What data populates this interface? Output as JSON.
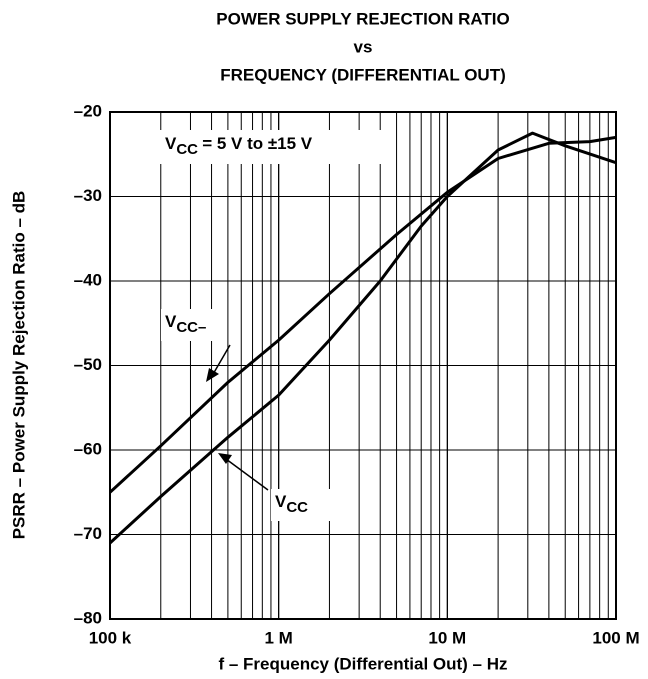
{
  "chart_data": {
    "type": "line",
    "title": [
      "POWER SUPPLY REJECTION RATIO",
      "vs",
      "FREQUENCY (DIFFERENTIAL OUT)"
    ],
    "x_label": "f – Frequency (Differential Out) – Hz",
    "y_label": "PSRR – Power Supply Rejection Ratio – dB",
    "annotation": "VCC = 5 V to ±15 V",
    "x_log": true,
    "grid": true,
    "xlim": [
      100000,
      100000000
    ],
    "xticks": [
      {
        "value": 100000,
        "label": "100 k"
      },
      {
        "value": 1000000,
        "label": "1 M"
      },
      {
        "value": 10000000,
        "label": "10 M"
      },
      {
        "value": 100000000,
        "label": "100 M"
      }
    ],
    "ylim": [
      -80,
      -20
    ],
    "yticks": [
      {
        "value": -20,
        "label": "–20"
      },
      {
        "value": -30,
        "label": "–30"
      },
      {
        "value": -40,
        "label": "–40"
      },
      {
        "value": -50,
        "label": "–50"
      },
      {
        "value": -60,
        "label": "–60"
      },
      {
        "value": -70,
        "label": "–70"
      },
      {
        "value": -80,
        "label": "–80"
      }
    ],
    "series": [
      {
        "name": "VCC–",
        "color": "#000000",
        "x": [
          100000,
          200000,
          500000,
          1000000,
          2000000,
          5000000,
          10000000,
          20000000,
          40000000,
          70000000,
          100000000
        ],
        "values": [
          -65,
          -59.5,
          -52,
          -47,
          -41.5,
          -34.5,
          -29.5,
          -25.5,
          -23.7,
          -23.5,
          -23
        ]
      },
      {
        "name": "VCC",
        "color": "#000000",
        "x": [
          100000,
          200000,
          500000,
          1000000,
          2000000,
          4000000,
          7000000,
          10000000,
          20000000,
          32000000,
          50000000,
          100000000
        ],
        "values": [
          -71,
          -65.5,
          -58.5,
          -53.5,
          -47,
          -40,
          -33.5,
          -30,
          -24.5,
          -22.5,
          -24,
          -26
        ]
      }
    ]
  }
}
